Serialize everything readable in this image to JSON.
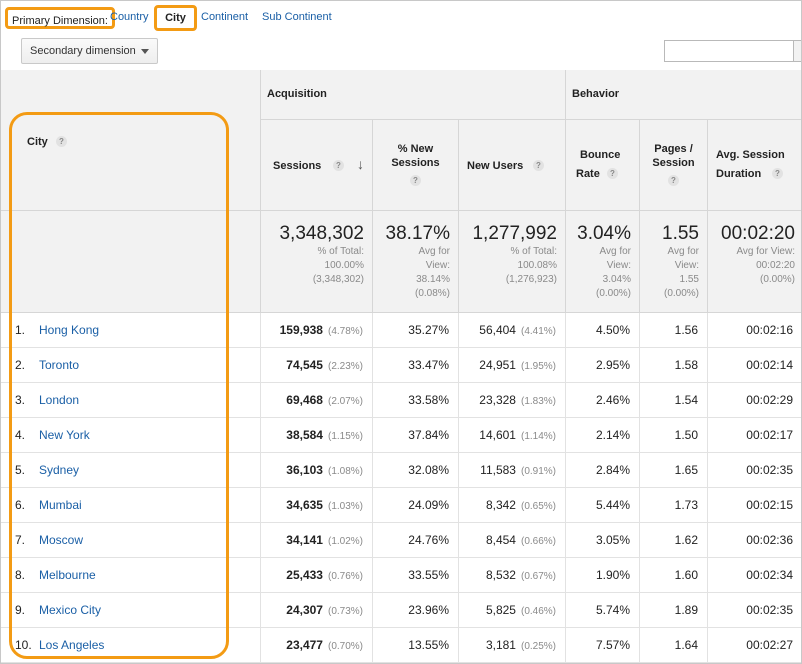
{
  "dimension_bar": {
    "primary_label": "Primary Dimension:",
    "links": [
      "Country",
      "City",
      "Continent",
      "Sub Continent"
    ],
    "selected": "City"
  },
  "toolbar": {
    "secondary_dimension_label": "Secondary dimension",
    "search_value": ""
  },
  "table": {
    "group_acquisition": "Acquisition",
    "group_behavior": "Behavior",
    "headers": {
      "city": "City",
      "sessions": "Sessions",
      "new_sessions_1": "% New",
      "new_sessions_2": "Sessions",
      "new_users": "New Users",
      "bounce_1": "Bounce",
      "bounce_2": "Rate",
      "pages_1": "Pages /",
      "pages_2": "Session",
      "dur_1": "Avg. Session",
      "dur_2": "Duration"
    },
    "totals": {
      "sessions": {
        "big": "3,348,302",
        "l1": "% of Total:",
        "l2": "100.00%",
        "l3": "(3,348,302)"
      },
      "new_sessions": {
        "big": "38.17%",
        "l1": "Avg for",
        "l2": "View:",
        "l3": "38.14%",
        "l4": "(0.08%)"
      },
      "new_users": {
        "big": "1,277,992",
        "l1": "% of Total:",
        "l2": "100.08%",
        "l3": "(1,276,923)"
      },
      "bounce": {
        "big": "3.04%",
        "l1": "Avg for",
        "l2": "View:",
        "l3": "3.04%",
        "l4": "(0.00%)"
      },
      "pages": {
        "big": "1.55",
        "l1": "Avg for",
        "l2": "View:",
        "l3": "1.55",
        "l4": "(0.00%)"
      },
      "duration": {
        "big": "00:02:20",
        "l1": "Avg for View:",
        "l2": "00:02:20",
        "l3": "(0.00%)"
      }
    },
    "rows": [
      {
        "idx": "1.",
        "city": "Hong Kong",
        "sessions": "159,938",
        "sessions_pct": "(4.78%)",
        "new_sessions": "35.27%",
        "new_users": "56,404",
        "new_users_pct": "(4.41%)",
        "bounce": "4.50%",
        "pages": "1.56",
        "duration": "00:02:16"
      },
      {
        "idx": "2.",
        "city": "Toronto",
        "sessions": "74,545",
        "sessions_pct": "(2.23%)",
        "new_sessions": "33.47%",
        "new_users": "24,951",
        "new_users_pct": "(1.95%)",
        "bounce": "2.95%",
        "pages": "1.58",
        "duration": "00:02:14"
      },
      {
        "idx": "3.",
        "city": "London",
        "sessions": "69,468",
        "sessions_pct": "(2.07%)",
        "new_sessions": "33.58%",
        "new_users": "23,328",
        "new_users_pct": "(1.83%)",
        "bounce": "2.46%",
        "pages": "1.54",
        "duration": "00:02:29"
      },
      {
        "idx": "4.",
        "city": "New York",
        "sessions": "38,584",
        "sessions_pct": "(1.15%)",
        "new_sessions": "37.84%",
        "new_users": "14,601",
        "new_users_pct": "(1.14%)",
        "bounce": "2.14%",
        "pages": "1.50",
        "duration": "00:02:17"
      },
      {
        "idx": "5.",
        "city": "Sydney",
        "sessions": "36,103",
        "sessions_pct": "(1.08%)",
        "new_sessions": "32.08%",
        "new_users": "11,583",
        "new_users_pct": "(0.91%)",
        "bounce": "2.84%",
        "pages": "1.65",
        "duration": "00:02:35"
      },
      {
        "idx": "6.",
        "city": "Mumbai",
        "sessions": "34,635",
        "sessions_pct": "(1.03%)",
        "new_sessions": "24.09%",
        "new_users": "8,342",
        "new_users_pct": "(0.65%)",
        "bounce": "5.44%",
        "pages": "1.73",
        "duration": "00:02:15"
      },
      {
        "idx": "7.",
        "city": "Moscow",
        "sessions": "34,141",
        "sessions_pct": "(1.02%)",
        "new_sessions": "24.76%",
        "new_users": "8,454",
        "new_users_pct": "(0.66%)",
        "bounce": "3.05%",
        "pages": "1.62",
        "duration": "00:02:36"
      },
      {
        "idx": "8.",
        "city": "Melbourne",
        "sessions": "25,433",
        "sessions_pct": "(0.76%)",
        "new_sessions": "33.55%",
        "new_users": "8,532",
        "new_users_pct": "(0.67%)",
        "bounce": "1.90%",
        "pages": "1.60",
        "duration": "00:02:34"
      },
      {
        "idx": "9.",
        "city": "Mexico City",
        "sessions": "24,307",
        "sessions_pct": "(0.73%)",
        "new_sessions": "23.96%",
        "new_users": "5,825",
        "new_users_pct": "(0.46%)",
        "bounce": "5.74%",
        "pages": "1.89",
        "duration": "00:02:35"
      },
      {
        "idx": "10.",
        "city": "Los Angeles",
        "sessions": "23,477",
        "sessions_pct": "(0.70%)",
        "new_sessions": "13.55%",
        "new_users": "3,181",
        "new_users_pct": "(0.25%)",
        "bounce": "7.57%",
        "pages": "1.64",
        "duration": "00:02:27"
      }
    ]
  },
  "colors": {
    "highlight": "#f39b14",
    "link": "#1a5fa6",
    "header_bg": "#f2f2f2"
  },
  "icons": [
    "help-icon",
    "sort-down-arrow-icon",
    "dropdown-caret-icon"
  ]
}
